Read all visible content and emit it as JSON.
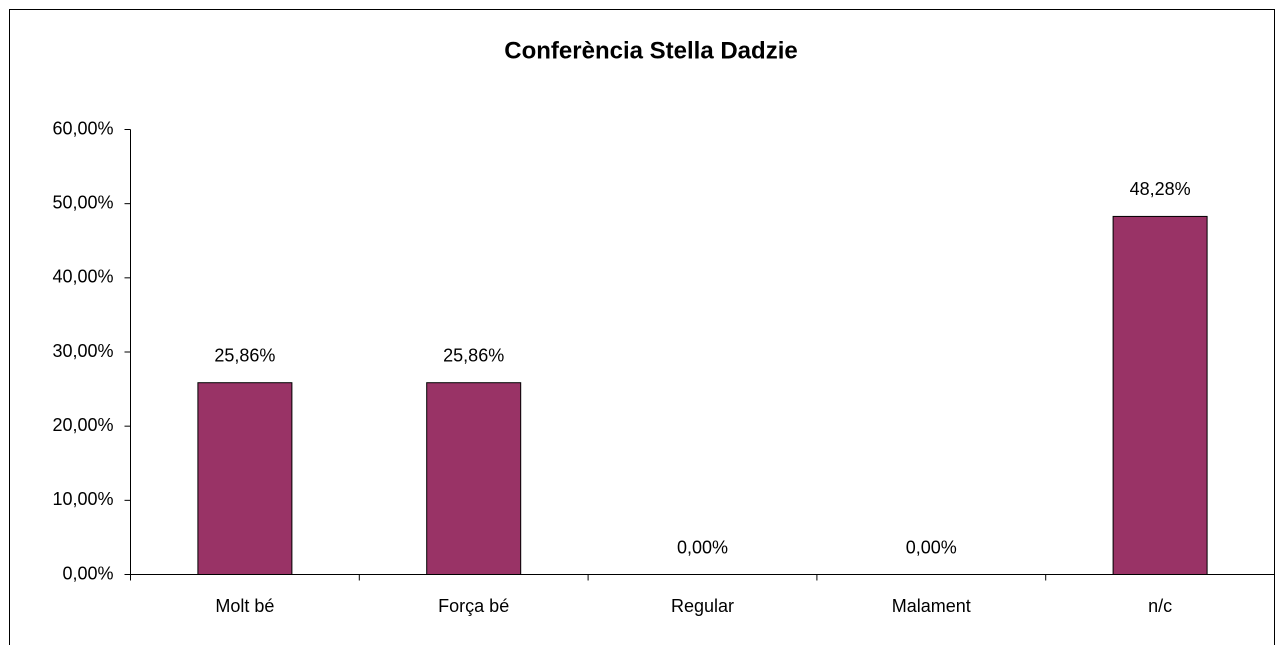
{
  "chart_data": {
    "type": "bar",
    "title": "Conferència Stella Dadzie",
    "categories": [
      "Molt bé",
      "Força bé",
      "Regular",
      "Malament",
      "n/c"
    ],
    "values": [
      25.86,
      25.86,
      0,
      0,
      48.28
    ],
    "value_labels": [
      "25,86%",
      "25,86%",
      "0,00%",
      "0,00%",
      "48,28%"
    ],
    "color": "#993366",
    "ylim": [
      0,
      60
    ],
    "yticks": [
      {
        "value": 0,
        "label": "0,00%"
      },
      {
        "value": 10,
        "label": "10,00%"
      },
      {
        "value": 20,
        "label": "20,00%"
      },
      {
        "value": 30,
        "label": "30,00%"
      },
      {
        "value": 40,
        "label": "40,00%"
      },
      {
        "value": 50,
        "label": "50,00%"
      },
      {
        "value": 60,
        "label": "60,00%"
      }
    ],
    "grid": false
  }
}
